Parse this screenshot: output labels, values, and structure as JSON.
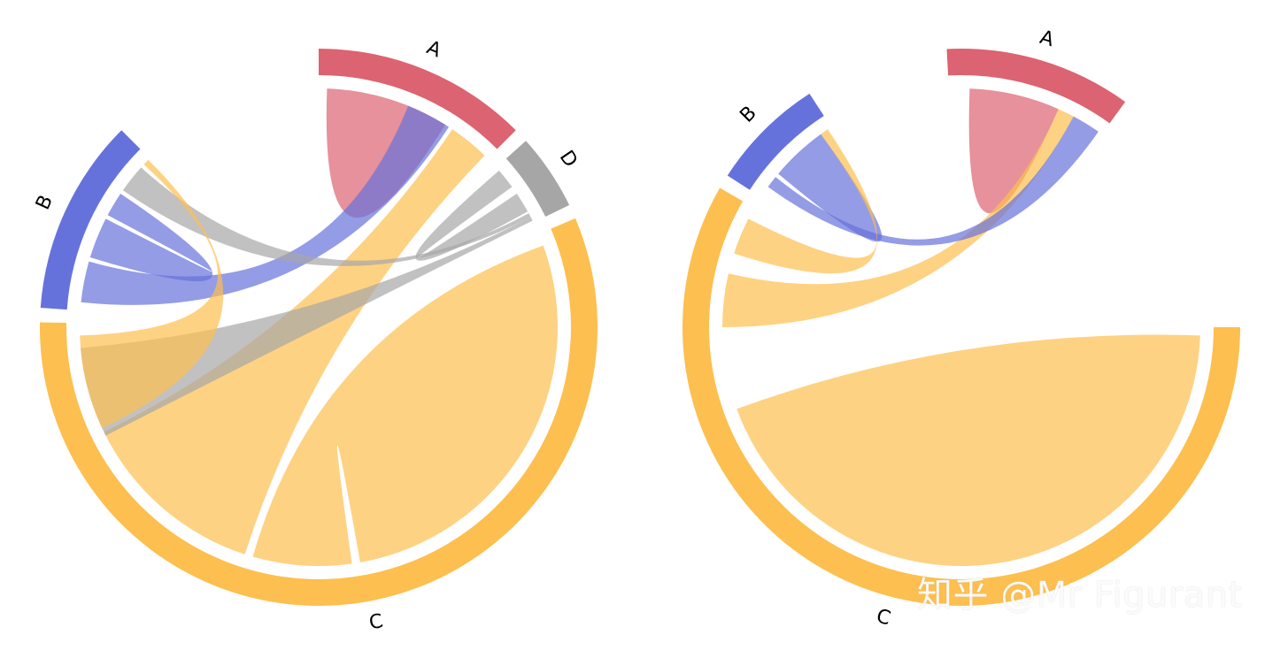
{
  "colors": {
    "A": "#dc6371",
    "B": "#6672dc",
    "C": "#fdbf4f",
    "D": "#a6a6a6"
  },
  "watermark": "知乎 @Mr Figurant",
  "chart_data": [
    {
      "type": "chord",
      "nodes": [
        {
          "name": "A",
          "label": "A",
          "color": "#dc6371"
        },
        {
          "name": "D",
          "label": "D",
          "color": "#a6a6a6"
        },
        {
          "name": "C",
          "label": "C",
          "color": "#fdbf4f"
        },
        {
          "name": "B",
          "label": "B",
          "color": "#6672dc"
        }
      ],
      "segments": [
        {
          "node": "A",
          "start": 0,
          "end": 45
        },
        {
          "node": "D",
          "start": 48,
          "end": 64
        },
        {
          "node": "C",
          "start": 67,
          "end": 271
        },
        {
          "node": "B",
          "start": 274,
          "end": 315
        }
      ],
      "links": [
        {
          "source": "A",
          "target": "A",
          "a": [
            2,
            17
          ],
          "b": [
            17,
            32
          ],
          "color": "#dc6371"
        },
        {
          "source": "A",
          "target": "C",
          "a": [
            34,
            44
          ],
          "b": [
            198,
            244
          ],
          "color": "#fdbf4f"
        },
        {
          "source": "A",
          "target": "B",
          "a": [
            22,
            33
          ],
          "b": [
            276,
            286
          ],
          "color": "#6672dc"
        },
        {
          "source": "D",
          "target": "D",
          "a": [
            49,
            54
          ],
          "b": [
            56,
            61
          ],
          "color": "#a6a6a6"
        },
        {
          "source": "D",
          "target": "B",
          "a": [
            61.5,
            62.5
          ],
          "b": [
            305,
            312
          ],
          "color": "#a6a6a6"
        },
        {
          "source": "D",
          "target": "C",
          "a": [
            62.5,
            63.5
          ],
          "b": [
            243,
            265
          ],
          "color": "#a6a6a6"
        },
        {
          "source": "C",
          "target": "C",
          "a": [
            70,
            170
          ],
          "b": [
            172,
            196
          ],
          "color": "#fdbf4f"
        },
        {
          "source": "B",
          "target": "B",
          "a": [
            287,
            297
          ],
          "b": [
            298,
            304
          ],
          "color": "#6672dc"
        },
        {
          "source": "B",
          "target": "C",
          "a": [
            313,
            314.5
          ],
          "b": [
            245,
            268
          ],
          "color": "#fdbf4f"
        }
      ]
    },
    {
      "type": "chord",
      "nodes": [
        {
          "name": "A",
          "label": "A",
          "color": "#dc6371"
        },
        {
          "name": "C",
          "label": "C",
          "color": "#fdbf4f"
        },
        {
          "name": "B",
          "label": "B",
          "color": "#6672dc"
        }
      ],
      "segments": [
        {
          "node": "A",
          "start": -3,
          "end": 36
        },
        {
          "node": "C",
          "start": 90,
          "end": 300
        },
        {
          "node": "B",
          "start": 303,
          "end": 327
        }
      ],
      "links": [
        {
          "source": "A",
          "target": "A",
          "a": [
            2,
            13
          ],
          "b": [
            13,
            24
          ],
          "color": "#dc6371"
        },
        {
          "source": "A",
          "target": "C",
          "a": [
            24,
            28
          ],
          "b": [
            270,
            283
          ],
          "color": "#fdbf4f"
        },
        {
          "source": "A",
          "target": "B",
          "a": [
            28,
            35
          ],
          "b": [
            306,
            309
          ],
          "color": "#6672dc"
        },
        {
          "source": "C",
          "target": "C",
          "a": [
            92,
            245
          ],
          "b": [
            245,
            250
          ],
          "color": "#fdbf4f"
        },
        {
          "source": "B",
          "target": "B",
          "a": [
            310,
            317
          ],
          "b": [
            317,
            324
          ],
          "color": "#6672dc"
        },
        {
          "source": "B",
          "target": "C",
          "a": [
            324,
            326
          ],
          "b": [
            288,
            297
          ],
          "color": "#fdbf4f"
        }
      ]
    }
  ]
}
